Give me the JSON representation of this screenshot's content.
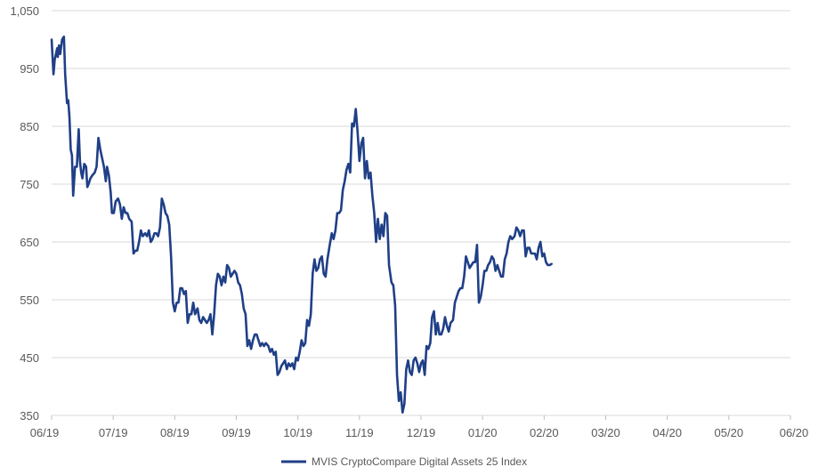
{
  "chart_data": {
    "type": "line",
    "title": "",
    "xlabel": "",
    "ylabel": "",
    "ylim": [
      350,
      1050
    ],
    "y_ticks": [
      350,
      450,
      550,
      650,
      750,
      850,
      950,
      1050
    ],
    "y_tick_labels": [
      "350",
      "450",
      "550",
      "650",
      "750",
      "850",
      "950",
      "1,050"
    ],
    "x_tick_labels": [
      "06/19",
      "07/19",
      "08/19",
      "09/19",
      "10/19",
      "11/19",
      "12/19",
      "01/20",
      "02/20",
      "03/20",
      "04/20",
      "05/20",
      "06/20"
    ],
    "grid": "horizontal",
    "legend_position": "bottom-center",
    "series": [
      {
        "name": "MVIS CryptoCompare Digital Assets 25 Index",
        "color": "#1f3f87",
        "points": [
          [
            0,
            1000
          ],
          [
            0.03,
            940
          ],
          [
            0.05,
            965
          ],
          [
            0.09,
            985
          ],
          [
            0.1,
            970
          ],
          [
            0.12,
            990
          ],
          [
            0.14,
            975
          ],
          [
            0.17,
            1000
          ],
          [
            0.2,
            1005
          ],
          [
            0.22,
            940
          ],
          [
            0.25,
            890
          ],
          [
            0.27,
            895
          ],
          [
            0.29,
            865
          ],
          [
            0.31,
            810
          ],
          [
            0.33,
            800
          ],
          [
            0.35,
            730
          ],
          [
            0.38,
            780
          ],
          [
            0.41,
            780
          ],
          [
            0.44,
            845
          ],
          [
            0.46,
            790
          ],
          [
            0.48,
            770
          ],
          [
            0.5,
            760
          ],
          [
            0.53,
            785
          ],
          [
            0.56,
            780
          ],
          [
            0.58,
            745
          ],
          [
            0.6,
            750
          ],
          [
            0.63,
            760
          ],
          [
            0.66,
            765
          ],
          [
            0.7,
            770
          ],
          [
            0.73,
            780
          ],
          [
            0.76,
            830
          ],
          [
            0.79,
            810
          ],
          [
            0.82,
            795
          ],
          [
            0.85,
            780
          ],
          [
            0.88,
            755
          ],
          [
            0.9,
            780
          ],
          [
            0.93,
            765
          ],
          [
            0.96,
            735
          ],
          [
            0.98,
            700
          ],
          [
            1.01,
            700
          ],
          [
            1.04,
            720
          ],
          [
            1.08,
            725
          ],
          [
            1.11,
            715
          ],
          [
            1.14,
            690
          ],
          [
            1.17,
            710
          ],
          [
            1.2,
            700
          ],
          [
            1.23,
            700
          ],
          [
            1.26,
            690
          ],
          [
            1.3,
            685
          ],
          [
            1.33,
            630
          ],
          [
            1.36,
            635
          ],
          [
            1.39,
            635
          ],
          [
            1.42,
            650
          ],
          [
            1.45,
            670
          ],
          [
            1.48,
            660
          ],
          [
            1.52,
            665
          ],
          [
            1.55,
            660
          ],
          [
            1.58,
            670
          ],
          [
            1.61,
            650
          ],
          [
            1.64,
            655
          ],
          [
            1.67,
            665
          ],
          [
            1.7,
            665
          ],
          [
            1.73,
            660
          ],
          [
            1.76,
            675
          ],
          [
            1.79,
            725
          ],
          [
            1.82,
            715
          ],
          [
            1.85,
            700
          ],
          [
            1.88,
            695
          ],
          [
            1.91,
            680
          ],
          [
            1.94,
            625
          ],
          [
            1.97,
            545
          ],
          [
            2.0,
            530
          ],
          [
            2.03,
            545
          ],
          [
            2.06,
            545
          ],
          [
            2.09,
            570
          ],
          [
            2.12,
            570
          ],
          [
            2.15,
            560
          ],
          [
            2.18,
            565
          ],
          [
            2.21,
            510
          ],
          [
            2.24,
            525
          ],
          [
            2.27,
            525
          ],
          [
            2.3,
            545
          ],
          [
            2.33,
            525
          ],
          [
            2.37,
            535
          ],
          [
            2.4,
            515
          ],
          [
            2.43,
            510
          ],
          [
            2.46,
            520
          ],
          [
            2.49,
            515
          ],
          [
            2.52,
            510
          ],
          [
            2.55,
            515
          ],
          [
            2.58,
            525
          ],
          [
            2.61,
            490
          ],
          [
            2.64,
            525
          ],
          [
            2.67,
            575
          ],
          [
            2.7,
            595
          ],
          [
            2.73,
            590
          ],
          [
            2.76,
            575
          ],
          [
            2.79,
            590
          ],
          [
            2.82,
            580
          ],
          [
            2.85,
            610
          ],
          [
            2.88,
            605
          ],
          [
            2.91,
            590
          ],
          [
            2.94,
            595
          ],
          [
            2.97,
            600
          ],
          [
            3.0,
            595
          ],
          [
            3.03,
            580
          ],
          [
            3.06,
            575
          ],
          [
            3.09,
            560
          ],
          [
            3.12,
            535
          ],
          [
            3.15,
            525
          ],
          [
            3.18,
            470
          ],
          [
            3.21,
            480
          ],
          [
            3.24,
            465
          ],
          [
            3.27,
            480
          ],
          [
            3.3,
            490
          ],
          [
            3.33,
            490
          ],
          [
            3.36,
            480
          ],
          [
            3.39,
            470
          ],
          [
            3.42,
            475
          ],
          [
            3.45,
            470
          ],
          [
            3.48,
            475
          ],
          [
            3.52,
            470
          ],
          [
            3.55,
            460
          ],
          [
            3.58,
            465
          ],
          [
            3.61,
            455
          ],
          [
            3.64,
            460
          ],
          [
            3.67,
            420
          ],
          [
            3.7,
            425
          ],
          [
            3.73,
            435
          ],
          [
            3.76,
            440
          ],
          [
            3.79,
            445
          ],
          [
            3.82,
            430
          ],
          [
            3.85,
            440
          ],
          [
            3.88,
            435
          ],
          [
            3.91,
            440
          ],
          [
            3.94,
            430
          ],
          [
            3.97,
            450
          ],
          [
            4.0,
            445
          ],
          [
            4.03,
            460
          ],
          [
            4.06,
            480
          ],
          [
            4.09,
            470
          ],
          [
            4.12,
            475
          ],
          [
            4.15,
            515
          ],
          [
            4.18,
            505
          ],
          [
            4.21,
            525
          ],
          [
            4.24,
            595
          ],
          [
            4.27,
            620
          ],
          [
            4.3,
            600
          ],
          [
            4.33,
            605
          ],
          [
            4.36,
            620
          ],
          [
            4.39,
            625
          ],
          [
            4.42,
            595
          ],
          [
            4.45,
            590
          ],
          [
            4.48,
            620
          ],
          [
            4.51,
            640
          ],
          [
            4.55,
            665
          ],
          [
            4.58,
            655
          ],
          [
            4.61,
            670
          ],
          [
            4.64,
            700
          ],
          [
            4.67,
            700
          ],
          [
            4.7,
            705
          ],
          [
            4.73,
            740
          ],
          [
            4.76,
            755
          ],
          [
            4.79,
            775
          ],
          [
            4.82,
            785
          ],
          [
            4.85,
            770
          ],
          [
            4.88,
            855
          ],
          [
            4.91,
            850
          ],
          [
            4.94,
            880
          ],
          [
            4.97,
            840
          ],
          [
            5.0,
            790
          ],
          [
            5.03,
            820
          ],
          [
            5.06,
            830
          ],
          [
            5.09,
            760
          ],
          [
            5.12,
            790
          ],
          [
            5.15,
            760
          ],
          [
            5.18,
            770
          ],
          [
            5.21,
            730
          ],
          [
            5.24,
            700
          ],
          [
            5.27,
            650
          ],
          [
            5.3,
            690
          ],
          [
            5.33,
            655
          ],
          [
            5.36,
            680
          ],
          [
            5.39,
            660
          ],
          [
            5.42,
            700
          ],
          [
            5.45,
            695
          ],
          [
            5.48,
            610
          ],
          [
            5.52,
            580
          ],
          [
            5.55,
            575
          ],
          [
            5.58,
            540
          ],
          [
            5.61,
            420
          ],
          [
            5.64,
            375
          ],
          [
            5.67,
            390
          ],
          [
            5.7,
            355
          ],
          [
            5.73,
            370
          ],
          [
            5.76,
            430
          ],
          [
            5.79,
            445
          ],
          [
            5.82,
            425
          ],
          [
            5.85,
            420
          ],
          [
            5.88,
            445
          ],
          [
            5.91,
            450
          ],
          [
            5.94,
            440
          ],
          [
            5.97,
            425
          ],
          [
            6.0,
            440
          ],
          [
            6.03,
            445
          ],
          [
            6.06,
            420
          ],
          [
            6.09,
            470
          ],
          [
            6.12,
            465
          ],
          [
            6.15,
            475
          ],
          [
            6.18,
            520
          ],
          [
            6.21,
            530
          ],
          [
            6.24,
            490
          ],
          [
            6.27,
            510
          ],
          [
            6.3,
            490
          ],
          [
            6.33,
            490
          ],
          [
            6.36,
            500
          ],
          [
            6.39,
            520
          ],
          [
            6.42,
            505
          ],
          [
            6.45,
            495
          ],
          [
            6.48,
            510
          ],
          [
            6.52,
            515
          ],
          [
            6.55,
            545
          ],
          [
            6.58,
            555
          ],
          [
            6.61,
            565
          ],
          [
            6.64,
            570
          ],
          [
            6.67,
            570
          ],
          [
            6.7,
            590
          ],
          [
            6.73,
            625
          ],
          [
            6.76,
            615
          ],
          [
            6.79,
            605
          ],
          [
            6.82,
            610
          ],
          [
            6.85,
            615
          ],
          [
            6.88,
            615
          ],
          [
            6.91,
            645
          ],
          [
            6.94,
            545
          ],
          [
            6.97,
            555
          ],
          [
            7.0,
            575
          ],
          [
            7.03,
            600
          ],
          [
            7.06,
            600
          ],
          [
            7.09,
            610
          ],
          [
            7.12,
            615
          ],
          [
            7.15,
            625
          ],
          [
            7.18,
            620
          ],
          [
            7.21,
            600
          ],
          [
            7.24,
            610
          ],
          [
            7.27,
            600
          ],
          [
            7.3,
            590
          ],
          [
            7.33,
            590
          ],
          [
            7.36,
            620
          ],
          [
            7.39,
            630
          ],
          [
            7.42,
            650
          ],
          [
            7.45,
            660
          ],
          [
            7.48,
            655
          ],
          [
            7.52,
            660
          ],
          [
            7.55,
            675
          ],
          [
            7.58,
            670
          ],
          [
            7.61,
            660
          ],
          [
            7.64,
            670
          ],
          [
            7.67,
            670
          ],
          [
            7.7,
            625
          ],
          [
            7.73,
            640
          ],
          [
            7.76,
            640
          ],
          [
            7.79,
            630
          ],
          [
            7.82,
            630
          ],
          [
            7.85,
            630
          ],
          [
            7.88,
            620
          ],
          [
            7.91,
            640
          ],
          [
            7.94,
            650
          ],
          [
            7.97,
            625
          ],
          [
            8.0,
            630
          ],
          [
            8.03,
            615
          ],
          [
            8.06,
            610
          ],
          [
            8.09,
            610
          ],
          [
            8.12,
            612
          ]
        ]
      }
    ]
  },
  "legend": {
    "label": "MVIS CryptoCompare Digital Assets 25 Index"
  }
}
